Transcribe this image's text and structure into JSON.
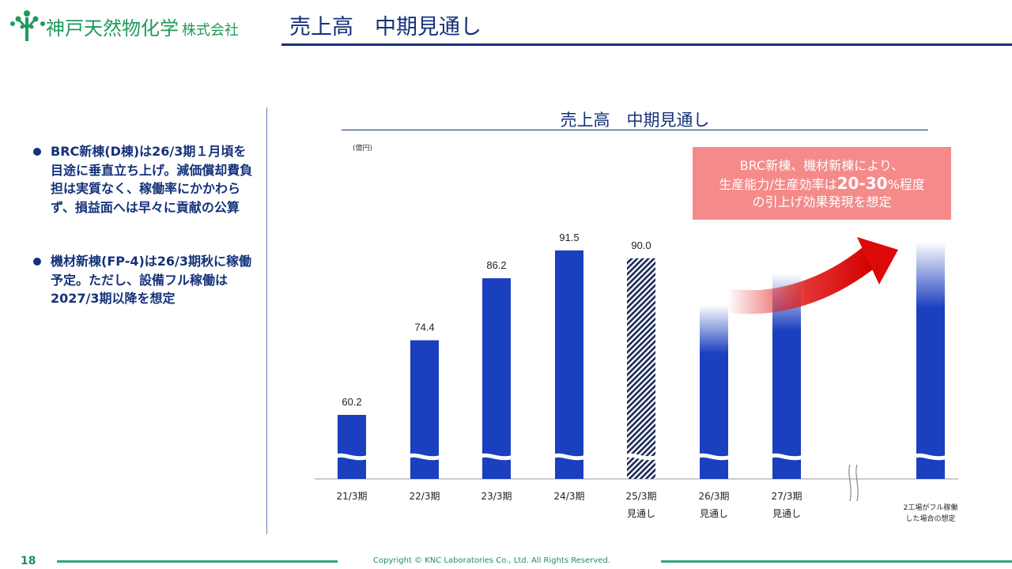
{
  "header": {
    "logo_name": "神戸天然物化学",
    "logo_suffix": "株式会社",
    "slide_title": "売上高　中期見通し",
    "brand_color": "#1f9a5a",
    "title_color": "#14327a"
  },
  "left_panel": {
    "bullets": [
      "BRC新棟(D棟)は26/3期１月頃を目途に垂直立ち上げ。減価償却費負担は実質なく、稼働率にかかわらず、損益面へは早々に貢献の公算",
      "機材新棟(FP-4)は26/3期秋に稼働予定。ただし、設備フル稼働は2027/3期以降を想定"
    ]
  },
  "callout": {
    "line1": "BRC新棟、機材新棟により、",
    "line2_prefix": "生産能力/生産効率は",
    "line2_emph": "20-30",
    "line2_suffix": "%程度",
    "line3": "の引上げ効果発現を想定",
    "color": "#f58a8a"
  },
  "chart_data": {
    "type": "bar",
    "title": "売上高　中期見通し",
    "unit_label": "(億円)",
    "categories": [
      "21/3期",
      "22/3期",
      "23/3期",
      "24/3期",
      "25/3期\n見通し",
      "26/3期\n見通し",
      "27/3期\n見通し",
      "2工場がフル稼働\nした場合の想定"
    ],
    "values": [
      60.2,
      74.4,
      86.2,
      91.5,
      90.0,
      null,
      null,
      null
    ],
    "value_labels": [
      "60.2",
      "74.4",
      "86.2",
      "91.5",
      "90.0",
      "",
      "",
      ""
    ],
    "styles": [
      "solid",
      "solid",
      "solid",
      "solid",
      "hatched",
      "gradient",
      "gradient",
      "gradient"
    ],
    "axis_break": true,
    "bar_color": "#1a3fbf",
    "arrow_color": "#e01e1e"
  },
  "footer": {
    "page_number": "18",
    "copyright": "Copyright © KNC Laboratories Co., Ltd. All Rights Reserved."
  }
}
